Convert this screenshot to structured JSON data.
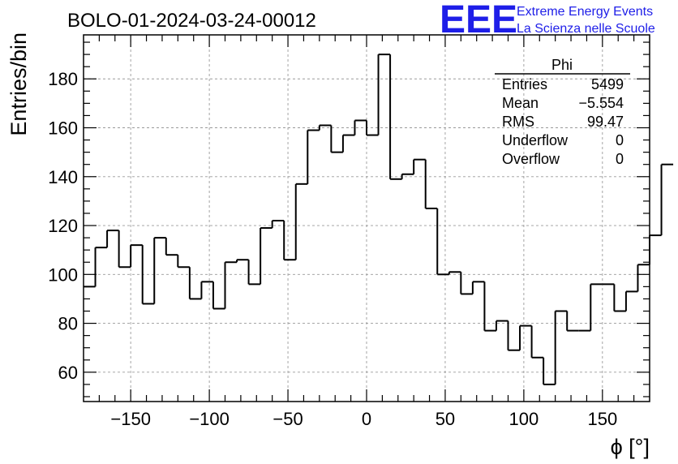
{
  "chart_data": {
    "type": "histogram",
    "title": "BOLO-01-2024-03-24-00012",
    "xlabel": "ϕ [°]",
    "ylabel": "Entries/bin",
    "xlim": [
      -180,
      180
    ],
    "ylim": [
      48,
      198
    ],
    "grid": true,
    "xticks": [
      -150,
      -100,
      -50,
      0,
      50,
      100,
      150
    ],
    "yticks": [
      60,
      80,
      100,
      120,
      140,
      160,
      180
    ],
    "bin_width": 7.5,
    "bin_edges_start": -180,
    "values": [
      95,
      111,
      118,
      103,
      112,
      88,
      115,
      108,
      103,
      90,
      97,
      86,
      105,
      106,
      96,
      119,
      122,
      106,
      137,
      159,
      161,
      150,
      157,
      163,
      157,
      190,
      139,
      141,
      147,
      127,
      100,
      101,
      92,
      97,
      77,
      81,
      69,
      79,
      66,
      55,
      85,
      77,
      77,
      96,
      96,
      85,
      93,
      104,
      116,
      145
    ],
    "stats_box": {
      "name": "Phi",
      "rows": [
        {
          "label": "Entries",
          "value": "5499"
        },
        {
          "label": "Mean",
          "value": "−5.554"
        },
        {
          "label": "RMS",
          "value": "99.47"
        },
        {
          "label": "Underflow",
          "value": "0"
        },
        {
          "label": "Overflow",
          "value": "0"
        }
      ]
    }
  },
  "logo": {
    "mark": "EEE",
    "line1": "Extreme Energy Events",
    "line2": "La Scienza nelle Scuole"
  }
}
